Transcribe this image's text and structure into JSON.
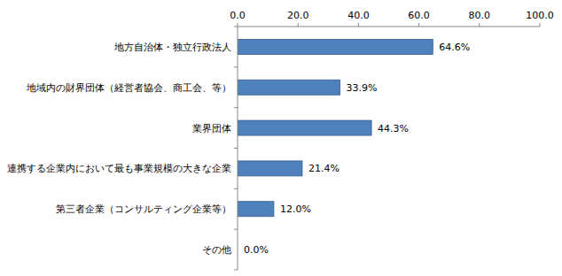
{
  "chart_data": {
    "type": "bar",
    "orientation": "horizontal",
    "categories": [
      "地方自治体・独立行政法人",
      "地域内の財界団体（経営者協会、商工会、等）",
      "業界団体",
      "連携する企業内において最も事業規模の大きな企業",
      "第三者企業（コンサルティング企業等）",
      "その他"
    ],
    "values": [
      64.6,
      33.9,
      44.3,
      21.4,
      12.0,
      0.0
    ],
    "value_labels": [
      "64.6%",
      "33.9%",
      "44.3%",
      "21.4%",
      "12.0%",
      "0.0%"
    ],
    "color": "#4f81bd",
    "xlim": [
      0,
      100
    ],
    "xticks": [
      {
        "value": 0,
        "label": "0.0"
      },
      {
        "value": 20,
        "label": "20.0"
      },
      {
        "value": 40,
        "label": "40.0"
      },
      {
        "value": 60,
        "label": "60.0"
      },
      {
        "value": 80,
        "label": "80.0"
      },
      {
        "value": 100,
        "label": "100.0"
      }
    ],
    "grid": false,
    "data_labels": true
  }
}
